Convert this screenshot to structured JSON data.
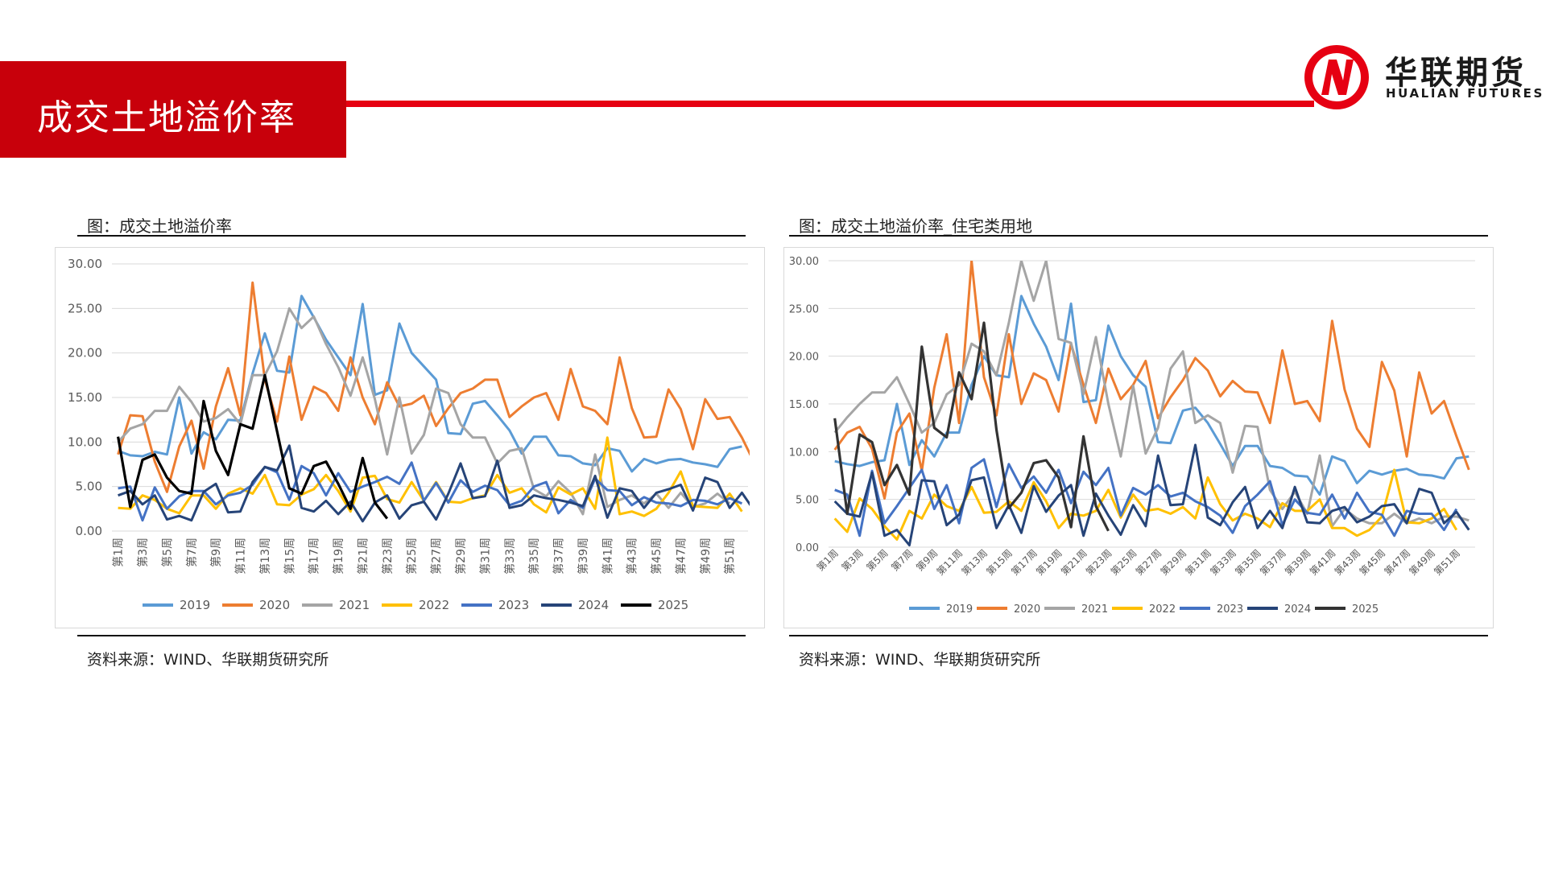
{
  "header": {
    "title": "成交土地溢价率",
    "logo_cn": "华联期货",
    "logo_en": "HUALIAN FUTURES",
    "accent": "#c8000b"
  },
  "panels": [
    {
      "title": "图：成交土地溢价率",
      "source": "资料来源：WIND、华联期货研究所"
    },
    {
      "title": "图：成交土地溢价率_住宅类用地",
      "source": "资料来源：WIND、华联期货研究所"
    }
  ],
  "chart_data": [
    {
      "type": "line",
      "title": "",
      "ylim": [
        0,
        30
      ],
      "y_ticks": [
        "0.00",
        "5.00",
        "10.00",
        "15.00",
        "20.00",
        "25.00",
        "30.00"
      ],
      "x_tick_labels": [
        "第1周",
        "第3周",
        "第5周",
        "第7周",
        "第9周",
        "第11周",
        "第13周",
        "第15周",
        "第17周",
        "第19周",
        "第21周",
        "第23周",
        "第25周",
        "第27周",
        "第29周",
        "第31周",
        "第33周",
        "第35周",
        "第37周",
        "第39周",
        "第41周",
        "第43周",
        "第45周",
        "第47周",
        "第49周",
        "第51周"
      ],
      "legend_position": "bottom",
      "series": [
        {
          "name": "2019",
          "color": "#5b9bd5",
          "values": [
            9,
            8.5,
            8.4,
            8.9,
            8.6,
            15,
            8.7,
            11.1,
            10.3,
            12.5,
            12.4,
            17.7,
            22.2,
            18,
            17.8,
            26.4,
            24,
            21.5,
            19.5,
            17.5,
            25.5,
            15.3,
            15.8,
            23.3,
            20,
            18.5,
            17,
            11,
            10.9,
            14.3,
            14.6,
            13,
            11.3,
            8.7,
            10.6,
            10.6,
            8.5,
            8.4,
            7.6,
            7.4,
            9.3,
            9,
            6.7,
            8.1,
            7.6,
            8,
            8.1,
            7.7,
            7.5,
            7.2,
            9.2,
            9.5
          ]
        },
        {
          "name": "2020",
          "color": "#ed7d31",
          "values": [
            8.6,
            13,
            12.9,
            7.8,
            4.4,
            9.5,
            12.4,
            7,
            14,
            18.3,
            13,
            27.9,
            17,
            12.3,
            19.6,
            12.5,
            16.2,
            15.5,
            13.5,
            19.5,
            15,
            12,
            16.7,
            14,
            14.3,
            15.2,
            11.8,
            13.8,
            15.5,
            16,
            17,
            17,
            12.8,
            14,
            15,
            15.5,
            12.5,
            18.2,
            14,
            13.5,
            12,
            19.5,
            13.8,
            10.5,
            10.6,
            15.9,
            13.7,
            9.2,
            14.8,
            12.6,
            12.8,
            10.5,
            7.7
          ]
        },
        {
          "name": "2021",
          "color": "#a5a5a5",
          "values": [
            10,
            11.5,
            12,
            13.5,
            13.5,
            16.2,
            14.5,
            12.3,
            12.7,
            13.7,
            12,
            17.5,
            17.5,
            20.2,
            25,
            22.8,
            24.1,
            21,
            18.4,
            15.2,
            19.5,
            14.8,
            8.6,
            15,
            8.7,
            10.8,
            16,
            15.5,
            12,
            10.5,
            10.5,
            7.6,
            9,
            9.3,
            4.7,
            3.9,
            5.6,
            4.3,
            1.9,
            8.6,
            2.7,
            3.5,
            4,
            3.1,
            4.2,
            2.6,
            4.3,
            2.7,
            3.1,
            4.2,
            3.1
          ]
        },
        {
          "name": "2022",
          "color": "#ffc000",
          "values": [
            2.6,
            2.5,
            4,
            3.5,
            2.5,
            2,
            4,
            4,
            2.5,
            4.2,
            4.8,
            4.2,
            6.3,
            3,
            2.9,
            4.1,
            4.7,
            6.3,
            4.5,
            2.2,
            6,
            6.2,
            3.6,
            3.2,
            5.5,
            3.4,
            5.5,
            3.3,
            3.2,
            3.7,
            4,
            6.3,
            4.3,
            4.8,
            3,
            2.1,
            4.9,
            4.1,
            4.8,
            2.5,
            10.5,
            1.9,
            2.2,
            1.7,
            2.5,
            4.3,
            6.7,
            2.8,
            2.7,
            2.6,
            4.2,
            2.2
          ]
        },
        {
          "name": "2023",
          "color": "#4472c4",
          "values": [
            4.8,
            5,
            1.2,
            4.9,
            2.5,
            3.9,
            4.5,
            4.5,
            3,
            4,
            4.3,
            5.2,
            7.2,
            6.6,
            3.5,
            7.3,
            6.5,
            4,
            6.5,
            4.4,
            5,
            5.5,
            6.1,
            5.3,
            7.7,
            3.4,
            5.4,
            3.2,
            5.7,
            4.4,
            5.1,
            4.6,
            2.9,
            3.4,
            5,
            5.5,
            2,
            3.5,
            2.6,
            5.9,
            4.6,
            4.5,
            2.9,
            3.8,
            3.2,
            3.1,
            2.8,
            3.5,
            3.4,
            3,
            3.7,
            3.1
          ]
        },
        {
          "name": "2024",
          "color": "#264478",
          "values": [
            4,
            4.5,
            3,
            4,
            1.3,
            1.7,
            1.2,
            4.4,
            5.3,
            2.1,
            2.2,
            5.5,
            7.2,
            6.8,
            9.6,
            2.6,
            2.2,
            3.4,
            1.9,
            3.3,
            1.1,
            3.2,
            4,
            1.4,
            2.9,
            3.3,
            1.3,
            4.2,
            7.6,
            3.7,
            3.9,
            7.9,
            2.6,
            2.9,
            4,
            3.7,
            3.5,
            3.2,
            2.8,
            6.2,
            1.5,
            4.8,
            4.5,
            2.6,
            4.3,
            4.7,
            5.2,
            2.3,
            6,
            5.5,
            2.6,
            4.3,
            2.3
          ]
        },
        {
          "name": "2025",
          "color": "#000000",
          "values": [
            10.6,
            2.7,
            8,
            8.6,
            6,
            4.5,
            4.2,
            14.6,
            9,
            6.3,
            12,
            11.5,
            17.5,
            11.2,
            4.8,
            4.2,
            7.3,
            7.8,
            5.3,
            2.5,
            8.2,
            3.2,
            1.4
          ]
        }
      ]
    },
    {
      "type": "line",
      "title": "",
      "ylim": [
        0,
        30
      ],
      "y_ticks": [
        "0.00",
        "5.00",
        "10.00",
        "15.00",
        "20.00",
        "25.00",
        "30.00"
      ],
      "x_tick_labels": [
        "第1周",
        "第3周",
        "第5周",
        "第7周",
        "第9周",
        "第11周",
        "第13周",
        "第15周",
        "第17周",
        "第19周",
        "第21周",
        "第23周",
        "第25周",
        "第27周",
        "第29周",
        "第31周",
        "第33周",
        "第35周",
        "第37周",
        "第39周",
        "第41周",
        "第43周",
        "第45周",
        "第47周",
        "第49周",
        "第51周"
      ],
      "legend_position": "bottom",
      "series": [
        {
          "name": "2019",
          "color": "#5b9bd5",
          "values": [
            9,
            8.7,
            8.5,
            8.9,
            9.1,
            15,
            8.6,
            11.2,
            9.5,
            12,
            12,
            17,
            20,
            18,
            17.8,
            26.3,
            23.4,
            21,
            17.5,
            25.5,
            15.2,
            15.4,
            23.2,
            20,
            18,
            16.8,
            11,
            10.9,
            14.3,
            14.6,
            13,
            10.8,
            8.5,
            10.6,
            10.6,
            8.5,
            8.3,
            7.5,
            7.4,
            5.5,
            9.5,
            9,
            6.7,
            8,
            7.6,
            8,
            8.2,
            7.6,
            7.5,
            7.2,
            9.3,
            9.5
          ]
        },
        {
          "name": "2020",
          "color": "#ed7d31",
          "values": [
            10.2,
            12,
            12.6,
            10.3,
            5.1,
            12,
            14,
            8,
            16.7,
            22.3,
            13,
            30,
            17.8,
            13.8,
            22.3,
            15,
            18.2,
            17.5,
            14.2,
            21.3,
            17,
            13,
            18.7,
            15.5,
            17,
            19.5,
            13.5,
            15.7,
            17.5,
            19.8,
            18.5,
            15.8,
            17.4,
            16.3,
            16.2,
            13,
            20.6,
            15,
            15.3,
            13.2,
            23.7,
            16.5,
            12.4,
            10.5,
            19.4,
            16.4,
            9.5,
            18.3,
            14,
            15.3,
            11.6,
            8.1
          ]
        },
        {
          "name": "2021",
          "color": "#a5a5a5",
          "values": [
            12,
            13.6,
            15,
            16.2,
            16.2,
            17.8,
            15,
            12,
            13,
            16,
            17,
            21.3,
            20.5,
            18,
            23.5,
            30,
            25.8,
            30,
            21.8,
            21.4,
            16,
            22,
            15,
            9.5,
            16.9,
            9.8,
            12.5,
            18.7,
            20.5,
            13,
            13.8,
            13,
            7.8,
            12.7,
            12.6,
            6,
            4,
            5.8,
            3.5,
            9.6,
            2.2,
            4,
            3,
            2.5,
            2.5,
            3.5,
            2.5,
            3,
            2.5,
            3.2,
            3.2,
            2.8
          ]
        },
        {
          "name": "2022",
          "color": "#ffc000",
          "values": [
            3,
            1.6,
            5.1,
            4,
            2.2,
            0.8,
            3.8,
            3,
            5.5,
            4.3,
            3.8,
            6.3,
            3.6,
            3.7,
            4.8,
            3.8,
            6.8,
            4.8,
            2,
            3.5,
            3.3,
            3.8,
            6,
            3.1,
            5.5,
            3.8,
            4,
            3.5,
            4.2,
            3,
            7.3,
            4.5,
            2.8,
            3.5,
            3,
            2.1,
            4.6,
            3.8,
            3.8,
            5,
            2,
            2,
            1.2,
            1.8,
            3.2,
            8.1,
            2.6,
            2.5,
            3,
            4,
            1.8
          ]
        },
        {
          "name": "2023",
          "color": "#4472c4",
          "values": [
            6,
            5.5,
            1.2,
            8,
            2.5,
            4.3,
            6.2,
            8.1,
            4,
            6.5,
            2.5,
            8.3,
            9.2,
            4.2,
            8.7,
            6.2,
            7.4,
            5.7,
            8.1,
            4.6,
            7.9,
            6.5,
            8.3,
            3.3,
            6.2,
            5.5,
            6.5,
            5.3,
            5.7,
            4.8,
            4.2,
            3.3,
            1.5,
            4.3,
            5.5,
            6.9,
            2.3,
            5,
            3.6,
            3.4,
            5.5,
            3,
            5.7,
            3.7,
            3.4,
            1.2,
            3.8,
            3.5,
            3.5,
            1.8,
            4
          ]
        },
        {
          "name": "2024",
          "color": "#264478",
          "values": [
            4.8,
            3.5,
            3.2,
            7.8,
            1.2,
            1.8,
            0.2,
            7,
            6.9,
            2.3,
            3.4,
            7,
            7.3,
            2,
            4.4,
            1.5,
            6.4,
            3.7,
            5.4,
            6.5,
            1.2,
            5.6,
            3.3,
            1.3,
            4.4,
            2.2,
            9.6,
            4.4,
            4.5,
            10.7,
            3.1,
            2.3,
            4.7,
            6.3,
            2,
            3.8,
            2,
            6.3,
            2.6,
            2.5,
            3.8,
            4.2,
            2.6,
            3.2,
            4.3,
            4.5,
            2.5,
            6.1,
            5.7,
            2.5,
            3.7,
            1.8
          ]
        },
        {
          "name": "2025",
          "color": "#333333",
          "values": [
            13.5,
            3.5,
            11.8,
            11,
            6.5,
            8.6,
            5.5,
            21,
            12.5,
            11.5,
            18.3,
            15.5,
            23.5,
            12.3,
            4.1,
            5.7,
            8.8,
            9.1,
            7.3,
            2.1,
            11.6,
            4.3,
            1.7
          ]
        }
      ]
    }
  ]
}
